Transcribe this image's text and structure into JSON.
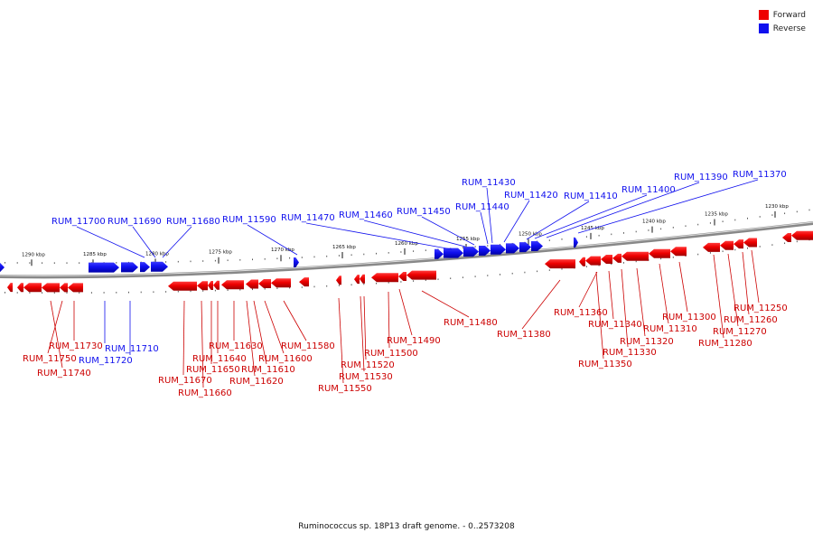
{
  "legend": {
    "forward_label": "Forward",
    "reverse_label": "Reverse",
    "forward_color": "#ee0000",
    "reverse_color": "#1010ee"
  },
  "caption": "Ruminococcus sp. 18P13 draft genome. - 0..2573208",
  "ticks": [
    {
      "label": "1290 kbp"
    },
    {
      "label": "1285 kbp"
    },
    {
      "label": "1280 kbp"
    },
    {
      "label": "1275 kbp"
    },
    {
      "label": "1270 kbp"
    },
    {
      "label": "1265 kbp"
    },
    {
      "label": "1260 kbp"
    },
    {
      "label": "1255 kbp"
    },
    {
      "label": "1250 kbp"
    },
    {
      "label": "1245 kbp"
    },
    {
      "label": "1240 kbp"
    },
    {
      "label": "1235 kbp"
    },
    {
      "label": "1230 kbp"
    }
  ],
  "reverse_genes": [
    {
      "name": "RUM_11700"
    },
    {
      "name": "RUM_11690"
    },
    {
      "name": "RUM_11680"
    },
    {
      "name": "RUM_11590"
    },
    {
      "name": "RUM_11470"
    },
    {
      "name": "RUM_11460"
    },
    {
      "name": "RUM_11450"
    },
    {
      "name": "RUM_11440"
    },
    {
      "name": "RUM_11430"
    },
    {
      "name": "RUM_11420"
    },
    {
      "name": "RUM_11410"
    },
    {
      "name": "RUM_11400"
    },
    {
      "name": "RUM_11390"
    },
    {
      "name": "RUM_11370"
    },
    {
      "name": "RUM_11710"
    },
    {
      "name": "RUM_11720"
    }
  ],
  "forward_genes": [
    {
      "name": "RUM_11730"
    },
    {
      "name": "RUM_11750"
    },
    {
      "name": "RUM_11740"
    },
    {
      "name": "RUM_11630"
    },
    {
      "name": "RUM_11640"
    },
    {
      "name": "RUM_11650"
    },
    {
      "name": "RUM_11670"
    },
    {
      "name": "RUM_11660"
    },
    {
      "name": "RUM_11600"
    },
    {
      "name": "RUM_11610"
    },
    {
      "name": "RUM_11620"
    },
    {
      "name": "RUM_11580"
    },
    {
      "name": "RUM_11550"
    },
    {
      "name": "RUM_11530"
    },
    {
      "name": "RUM_11520"
    },
    {
      "name": "RUM_11500"
    },
    {
      "name": "RUM_11490"
    },
    {
      "name": "RUM_11480"
    },
    {
      "name": "RUM_11380"
    },
    {
      "name": "RUM_11360"
    },
    {
      "name": "RUM_11350"
    },
    {
      "name": "RUM_11340"
    },
    {
      "name": "RUM_11330"
    },
    {
      "name": "RUM_11320"
    },
    {
      "name": "RUM_11310"
    },
    {
      "name": "RUM_11300"
    },
    {
      "name": "RUM_11280"
    },
    {
      "name": "RUM_11270"
    },
    {
      "name": "RUM_11260"
    },
    {
      "name": "RUM_11250"
    }
  ]
}
